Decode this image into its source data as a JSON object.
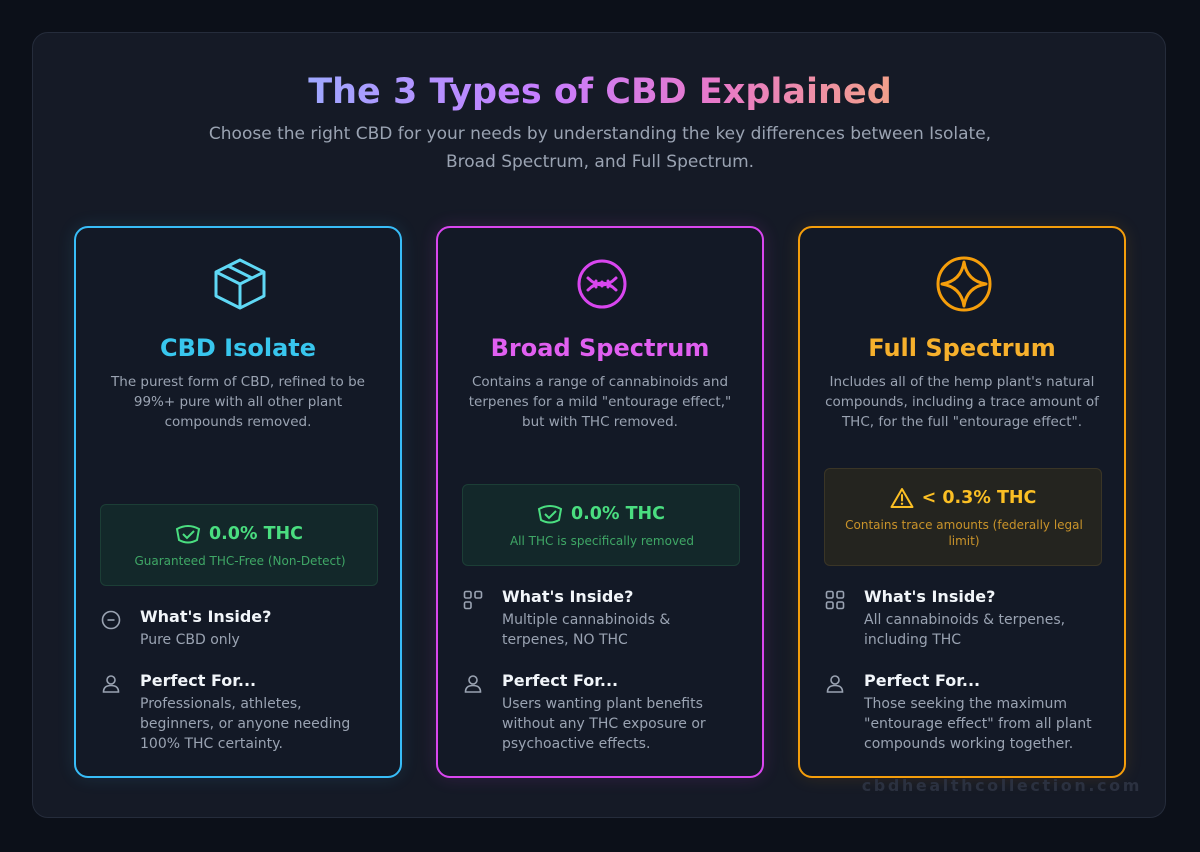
{
  "header": {
    "title": "The 3 Types of CBD Explained",
    "subtitle": "Choose the right CBD for your needs by understanding the key differences between Isolate, Broad Spectrum, and Full Spectrum."
  },
  "cards": [
    {
      "title": "CBD Isolate",
      "icon": "box-icon",
      "accent": "#38bdf8",
      "description": "The purest form of CBD, refined to be 99%+ pure with all other plant compounds removed.",
      "thc": {
        "icon": "shield-check-icon",
        "value": "0.0% THC",
        "note": "Guaranteed THC-Free (Non-Detect)"
      },
      "inside": {
        "icon": "minus-circle-icon",
        "label": "What's Inside?",
        "text": "Pure CBD only"
      },
      "perfect": {
        "icon": "user-icon",
        "label": "Perfect For...",
        "text": "Professionals, athletes, beginners, or anyone needing 100% THC certainty."
      }
    },
    {
      "title": "Broad Spectrum",
      "icon": "dna-circle-icon",
      "accent": "#d946ef",
      "description": "Contains a range of cannabinoids and terpenes for a mild \"entourage effect,\" but with THC removed.",
      "thc": {
        "icon": "shield-check-icon",
        "value": "0.0% THC",
        "note": "All THC is specifically removed"
      },
      "inside": {
        "icon": "grid-icon",
        "label": "What's Inside?",
        "text": "Multiple cannabinoids & terpenes, NO THC"
      },
      "perfect": {
        "icon": "user-icon",
        "label": "Perfect For...",
        "text": "Users wanting plant benefits without any THC exposure or psychoactive effects."
      }
    },
    {
      "title": "Full Spectrum",
      "icon": "sparkle-circle-icon",
      "accent": "#f59e0b",
      "description": "Includes all of the hemp plant's natural compounds, including a trace amount of THC, for the full \"entourage effect\".",
      "thc": {
        "icon": "warning-icon",
        "value": "< 0.3% THC",
        "note": "Contains trace amounts (federally legal limit)"
      },
      "inside": {
        "icon": "grid-icon",
        "label": "What's Inside?",
        "text": "All cannabinoids & terpenes, including THC"
      },
      "perfect": {
        "icon": "user-icon",
        "label": "Perfect For...",
        "text": "Those seeking the maximum \"entourage effect\" from all plant compounds working together."
      }
    }
  ],
  "watermark": "cbdhealthcollection.com"
}
